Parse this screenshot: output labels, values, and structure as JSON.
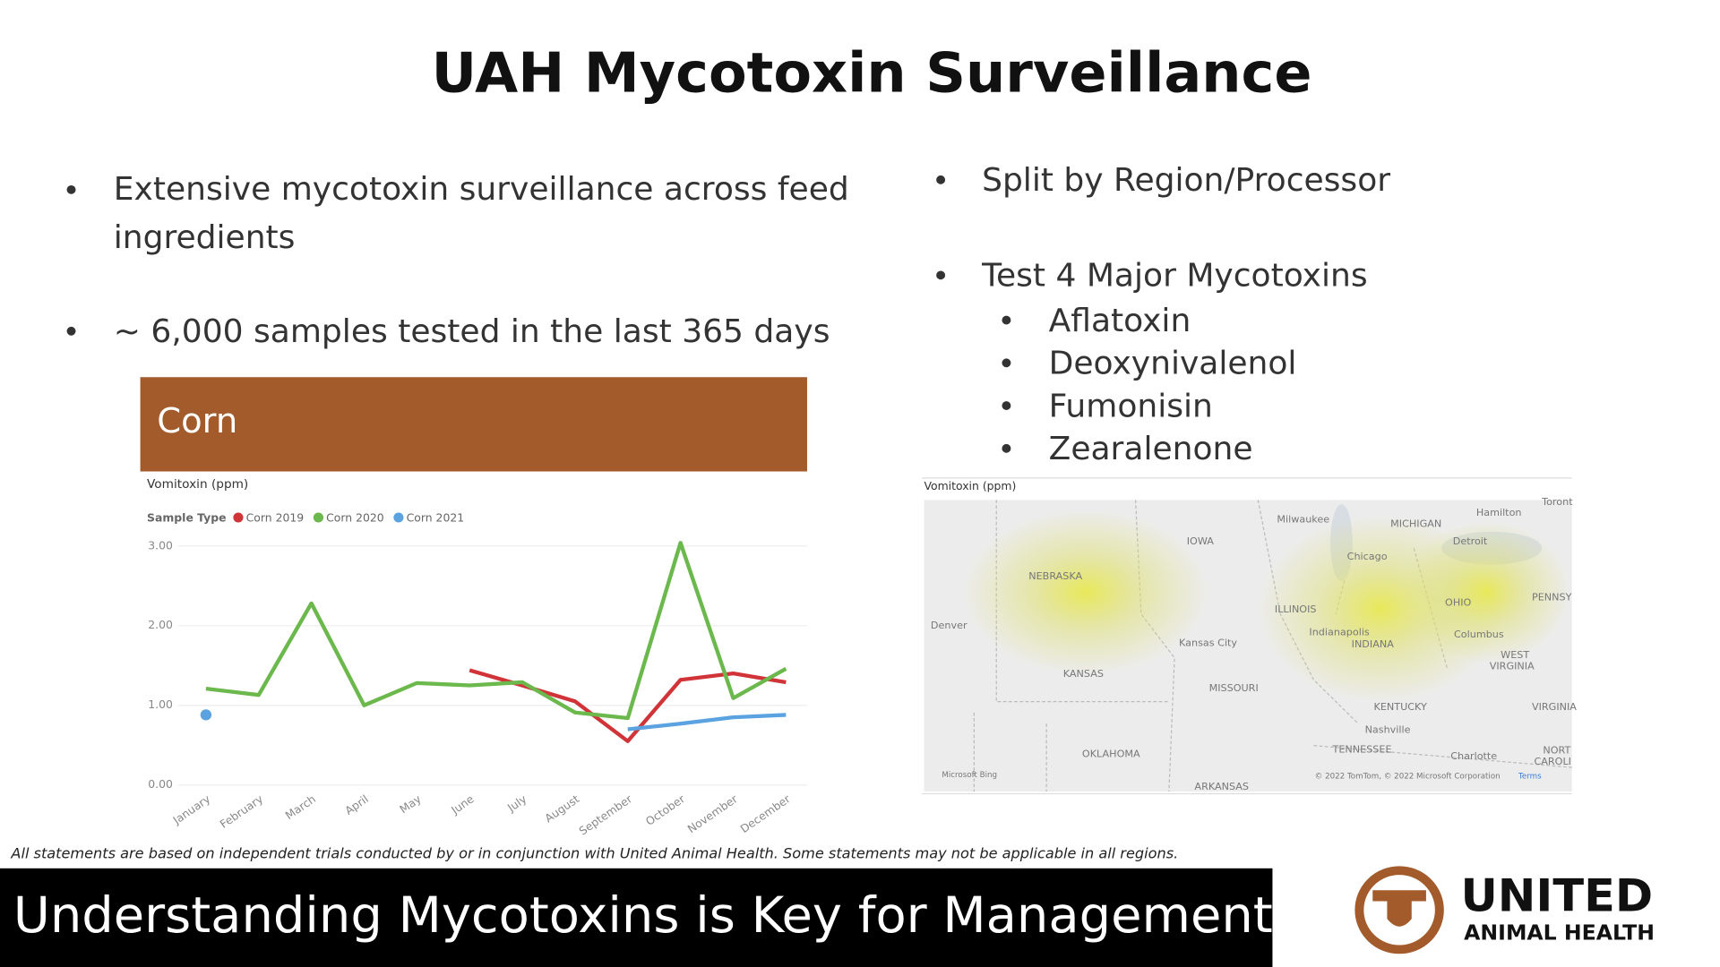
{
  "header": {
    "title": "UAH Mycotoxin Surveillance"
  },
  "left_bullets": [
    "Extensive mycotoxin surveillance across feed",
    "ingredients",
    "~ 6,000 samples tested in the last 365 days"
  ],
  "right_bullets": [
    "Split by Region/Processor",
    "Test 4 Major Mycotoxins"
  ],
  "sub_bullets": [
    "Aflatoxin",
    "Deoxynivalenol",
    "Fumonisin",
    "Zearalenone"
  ],
  "panel": {
    "title": "Corn"
  },
  "chart_data": {
    "type": "line",
    "title": "Vomitoxin (ppm)",
    "legend_title": "Sample Type",
    "categories": [
      "January",
      "February",
      "March",
      "April",
      "May",
      "June",
      "July",
      "August",
      "September",
      "October",
      "November",
      "December"
    ],
    "series": [
      {
        "name": "Corn 2019",
        "color": "#d13438",
        "values": [
          null,
          null,
          null,
          null,
          null,
          1.44,
          1.25,
          1.05,
          0.55,
          1.32,
          1.4,
          1.29
        ]
      },
      {
        "name": "Corn 2020",
        "color": "#6bb84c",
        "values": [
          1.21,
          1.13,
          2.28,
          1.0,
          1.28,
          1.25,
          1.29,
          0.91,
          0.84,
          3.04,
          1.09,
          1.46
        ]
      },
      {
        "name": "Corn 2021",
        "color": "#5ba3e0",
        "values": [
          0.88,
          null,
          null,
          null,
          null,
          null,
          null,
          null,
          0.7,
          0.77,
          0.85,
          0.88
        ]
      }
    ],
    "ylim": [
      0,
      3
    ],
    "yticks": [
      {
        "value": 0,
        "label": "0.00"
      },
      {
        "value": 1,
        "label": "1.00"
      },
      {
        "value": 2,
        "label": "2.00"
      },
      {
        "value": 3,
        "label": "3.00"
      }
    ],
    "grid": true
  },
  "map": {
    "title": "Vomitoxin (ppm)",
    "labels": [
      "Milwaukee",
      "MICHIGAN",
      "Hamilton",
      "Toront",
      "IOWA",
      "Detroit",
      "Chicago",
      "NEBRASKA",
      "ILLINOIS",
      "OHIO",
      "PENNSY",
      "Denver",
      "Indianapolis",
      "INDIANA",
      "Columbus",
      "Kansas City",
      "WEST",
      "VIRGINIA",
      "KANSAS",
      "MISSOURI",
      "KENTUCKY",
      "VIRGINIA",
      "Nashville",
      "TENNESSEE",
      "OKLAHOMA",
      "Charlotte",
      "NORT",
      "CAROLI",
      "ARKANSAS"
    ],
    "attribution": "Microsoft Bing",
    "copyright": "© 2022 TomTom, © 2022 Microsoft Corporation",
    "terms": "Terms"
  },
  "footer": {
    "disclaimer": "All statements are based on independent trials conducted by or in conjunction with United Animal Health. Some statements may not be applicable in all regions.",
    "banner": "Understanding Mycotoxins is Key for Management",
    "logo_name": "UNITED",
    "logo_sub": "ANIMAL HEALTH"
  }
}
